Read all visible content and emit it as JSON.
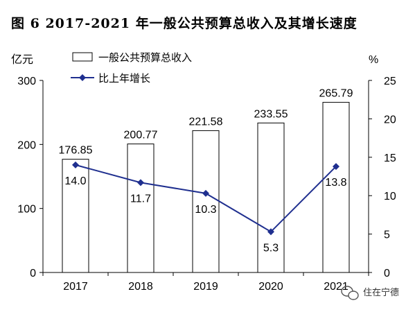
{
  "page": {
    "title": "图 6  2017-2021 年一般公共预算总收入及其增长速度",
    "watermark": "住在宁德"
  },
  "chart_data": {
    "type": "bar",
    "title": "图 6  2017-2021 年一般公共预算总收入及其增长速度",
    "categories": [
      "2017",
      "2018",
      "2019",
      "2020",
      "2021"
    ],
    "left_axis": {
      "unit": "亿元",
      "ylim": [
        0,
        300
      ],
      "ticks": [
        "0",
        "100",
        "200",
        "300"
      ]
    },
    "right_axis": {
      "unit": "%",
      "ylim": [
        0,
        25
      ],
      "ticks": [
        "0",
        "5",
        "10",
        "15",
        "20",
        "25"
      ]
    },
    "series": [
      {
        "name": "一般公共预算总收入",
        "kind": "bar",
        "axis": "left",
        "values": [
          176.85,
          200.77,
          221.58,
          233.55,
          265.79
        ],
        "labels": [
          "176.85",
          "200.77",
          "221.58",
          "233.55",
          "265.79"
        ],
        "color": "#ffffff",
        "stroke": "#000000"
      },
      {
        "name": "比上年增长",
        "kind": "line",
        "axis": "right",
        "values": [
          14.0,
          11.7,
          10.3,
          5.3,
          13.8
        ],
        "labels": [
          "14.0",
          "11.7",
          "10.3",
          "5.3",
          "13.8"
        ],
        "color": "#1f2f8f"
      }
    ],
    "grid": false,
    "legend_position": "top-left"
  }
}
